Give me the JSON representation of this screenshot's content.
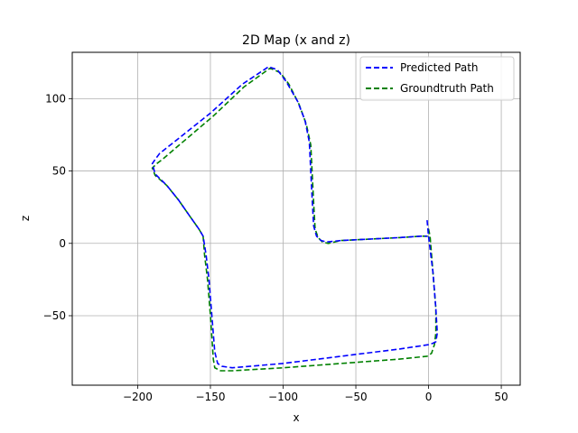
{
  "chart_data": {
    "type": "line",
    "title": "2D Map (x and z)",
    "xlabel": "x",
    "ylabel": "z",
    "xlim": [
      -245,
      63
    ],
    "ylim": [
      -98,
      132
    ],
    "xticks": [
      -200,
      -150,
      -100,
      -50,
      0,
      50
    ],
    "yticks": [
      -50,
      0,
      50,
      100
    ],
    "xtick_labels": [
      "−200",
      "−150",
      "−100",
      "−50",
      "0",
      "50"
    ],
    "ytick_labels": [
      "−50",
      "0",
      "50",
      "100"
    ],
    "grid": true,
    "legend": "top-right",
    "series": [
      {
        "name": "Predicted Path",
        "color": "#0000ff",
        "style": "dashed",
        "x": [
          -1,
          0,
          3,
          5,
          6,
          5,
          3,
          0,
          -20,
          -60,
          -100,
          -135,
          -142,
          -145,
          -147,
          -149,
          -151,
          -153,
          -155,
          -158,
          -165,
          -172,
          -180,
          -188,
          -190,
          -188,
          -185,
          -150,
          -128,
          -110,
          -104,
          -98,
          -90,
          -85,
          -82,
          -81,
          -80,
          -79,
          -77,
          -74,
          -70,
          -60,
          -40,
          -20,
          -5,
          -2,
          -1
        ],
        "y": [
          16,
          5,
          -20,
          -45,
          -62,
          -68,
          -69,
          -70,
          -73,
          -78,
          -83,
          -86,
          -85,
          -83,
          -75,
          -50,
          -25,
          -8,
          5,
          10,
          20,
          30,
          40,
          48,
          55,
          58,
          62,
          90,
          110,
          122,
          120,
          112,
          98,
          85,
          70,
          50,
          30,
          12,
          5,
          2,
          1,
          2,
          3,
          4,
          5,
          5,
          5
        ]
      },
      {
        "name": "Groundtruth Path",
        "color": "#008000",
        "style": "dashed",
        "x": [
          0,
          1,
          3,
          5,
          5,
          4,
          2,
          -1,
          -20,
          -60,
          -100,
          -135,
          -143,
          -147,
          -148,
          -150,
          -152,
          -154,
          -155,
          -158,
          -165,
          -172,
          -180,
          -188,
          -190,
          -187,
          -183,
          -148,
          -127,
          -109,
          -102,
          -96,
          -89,
          -84,
          -81,
          -80,
          -79,
          -78,
          -76,
          -73,
          -69,
          -60,
          -40,
          -20,
          -5,
          -2,
          0
        ],
        "y": [
          10,
          5,
          -20,
          -45,
          -62,
          -70,
          -76,
          -78,
          -80,
          -83,
          -86,
          -88,
          -88,
          -86,
          -80,
          -50,
          -25,
          -8,
          5,
          10,
          20,
          30,
          40,
          47,
          52,
          55,
          58,
          88,
          108,
          121,
          118,
          110,
          96,
          82,
          68,
          48,
          28,
          10,
          4,
          1,
          0,
          2,
          3,
          4,
          5,
          5,
          5
        ]
      }
    ]
  }
}
